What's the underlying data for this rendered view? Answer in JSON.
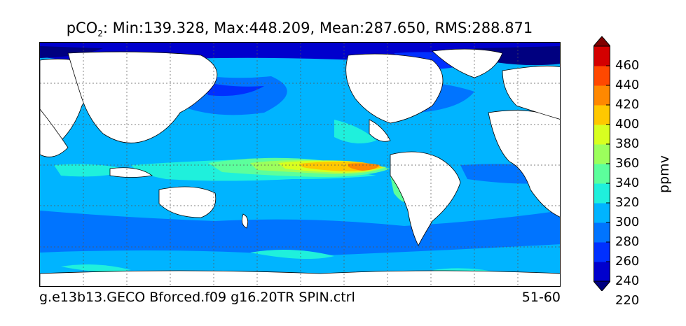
{
  "title_prefix": "pCO",
  "title_sub": "2",
  "title_rest": ": Min:139.328, Max:448.209, Mean:287.650, RMS:288.871",
  "footer_left": "g.e13b13.GECO Bforced.f09 g16.20TR SPIN.ctrl",
  "footer_right": "51-60",
  "colorbar": {
    "unit": "ppmv",
    "ticks": [
      "460",
      "440",
      "420",
      "400",
      "380",
      "360",
      "340",
      "320",
      "300",
      "280",
      "260",
      "240",
      "220"
    ],
    "colors": [
      "#000080",
      "#0000cd",
      "#0030ff",
      "#0074ff",
      "#00b4ff",
      "#1ff0dc",
      "#5cff9c",
      "#9cff5c",
      "#d8ff20",
      "#ffc800",
      "#ff8800",
      "#ff4800",
      "#d40000",
      "#800000"
    ],
    "extend": "both"
  }
}
